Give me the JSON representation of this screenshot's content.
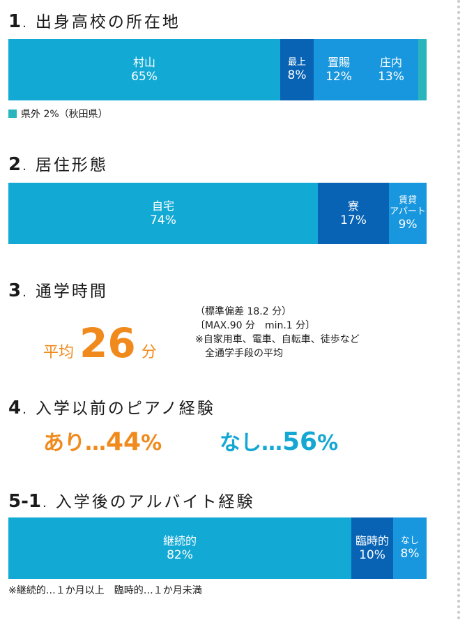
{
  "sections": {
    "s1": {
      "num": "1",
      "title": "出身高校の所在地",
      "note": "県外 2%（秋田県）"
    },
    "s2": {
      "num": "2",
      "title": "居住形態"
    },
    "s3": {
      "num": "3",
      "title": "通学時間",
      "avg_label": "平均",
      "avg_value": "26",
      "avg_unit": "分",
      "notes": [
        "（標準偏差 18.2 分）",
        "〔MAX.90 分　min.1 分〕",
        "※自家用車、電車、自転車、徒歩など",
        "　全通学手段の平均"
      ]
    },
    "s4": {
      "num": "4",
      "title": "入学以前のピアノ経験",
      "yes_label": "あり…",
      "yes_value": "44",
      "no_label": "なし…",
      "no_value": "56",
      "unit": "%"
    },
    "s5": {
      "num": "5-1",
      "title": "入学後のアルバイト経験",
      "note": "※継続的…１か月以上　臨時的…１か月未満"
    }
  },
  "colors": {
    "teal_blue": "#12a9d4",
    "dark_blue": "#0863b5",
    "mid_blue": "#1896de",
    "teal_green": "#2ab5bd",
    "orange": "#f08a1c"
  },
  "chart_data": [
    {
      "type": "bar",
      "orientation": "horizontal-stacked-100",
      "title": "出身高校の所在地",
      "categories": [
        "村山",
        "最上",
        "置賜",
        "庄内",
        "県外"
      ],
      "values": [
        65,
        8,
        12,
        13,
        2
      ],
      "value_labels": [
        "65%",
        "8%",
        "12%",
        "13%",
        ""
      ],
      "colors": [
        "#12a9d4",
        "#0863b5",
        "#1896de",
        "#1896de",
        "#2ab5bd"
      ]
    },
    {
      "type": "bar",
      "orientation": "horizontal-stacked-100",
      "title": "居住形態",
      "categories": [
        "自宅",
        "寮",
        "賃貸 アパート"
      ],
      "values": [
        74,
        17,
        9
      ],
      "value_labels": [
        "74%",
        "17%",
        "9%"
      ],
      "colors": [
        "#12a9d4",
        "#0863b5",
        "#1896de"
      ]
    },
    {
      "type": "bar",
      "orientation": "horizontal-stacked-100",
      "title": "入学後のアルバイト経験",
      "categories": [
        "継続的",
        "臨時的",
        "なし"
      ],
      "values": [
        82,
        10,
        8
      ],
      "value_labels": [
        "82%",
        "10%",
        "8%"
      ],
      "colors": [
        "#12a9d4",
        "#0863b5",
        "#1896de"
      ]
    }
  ]
}
